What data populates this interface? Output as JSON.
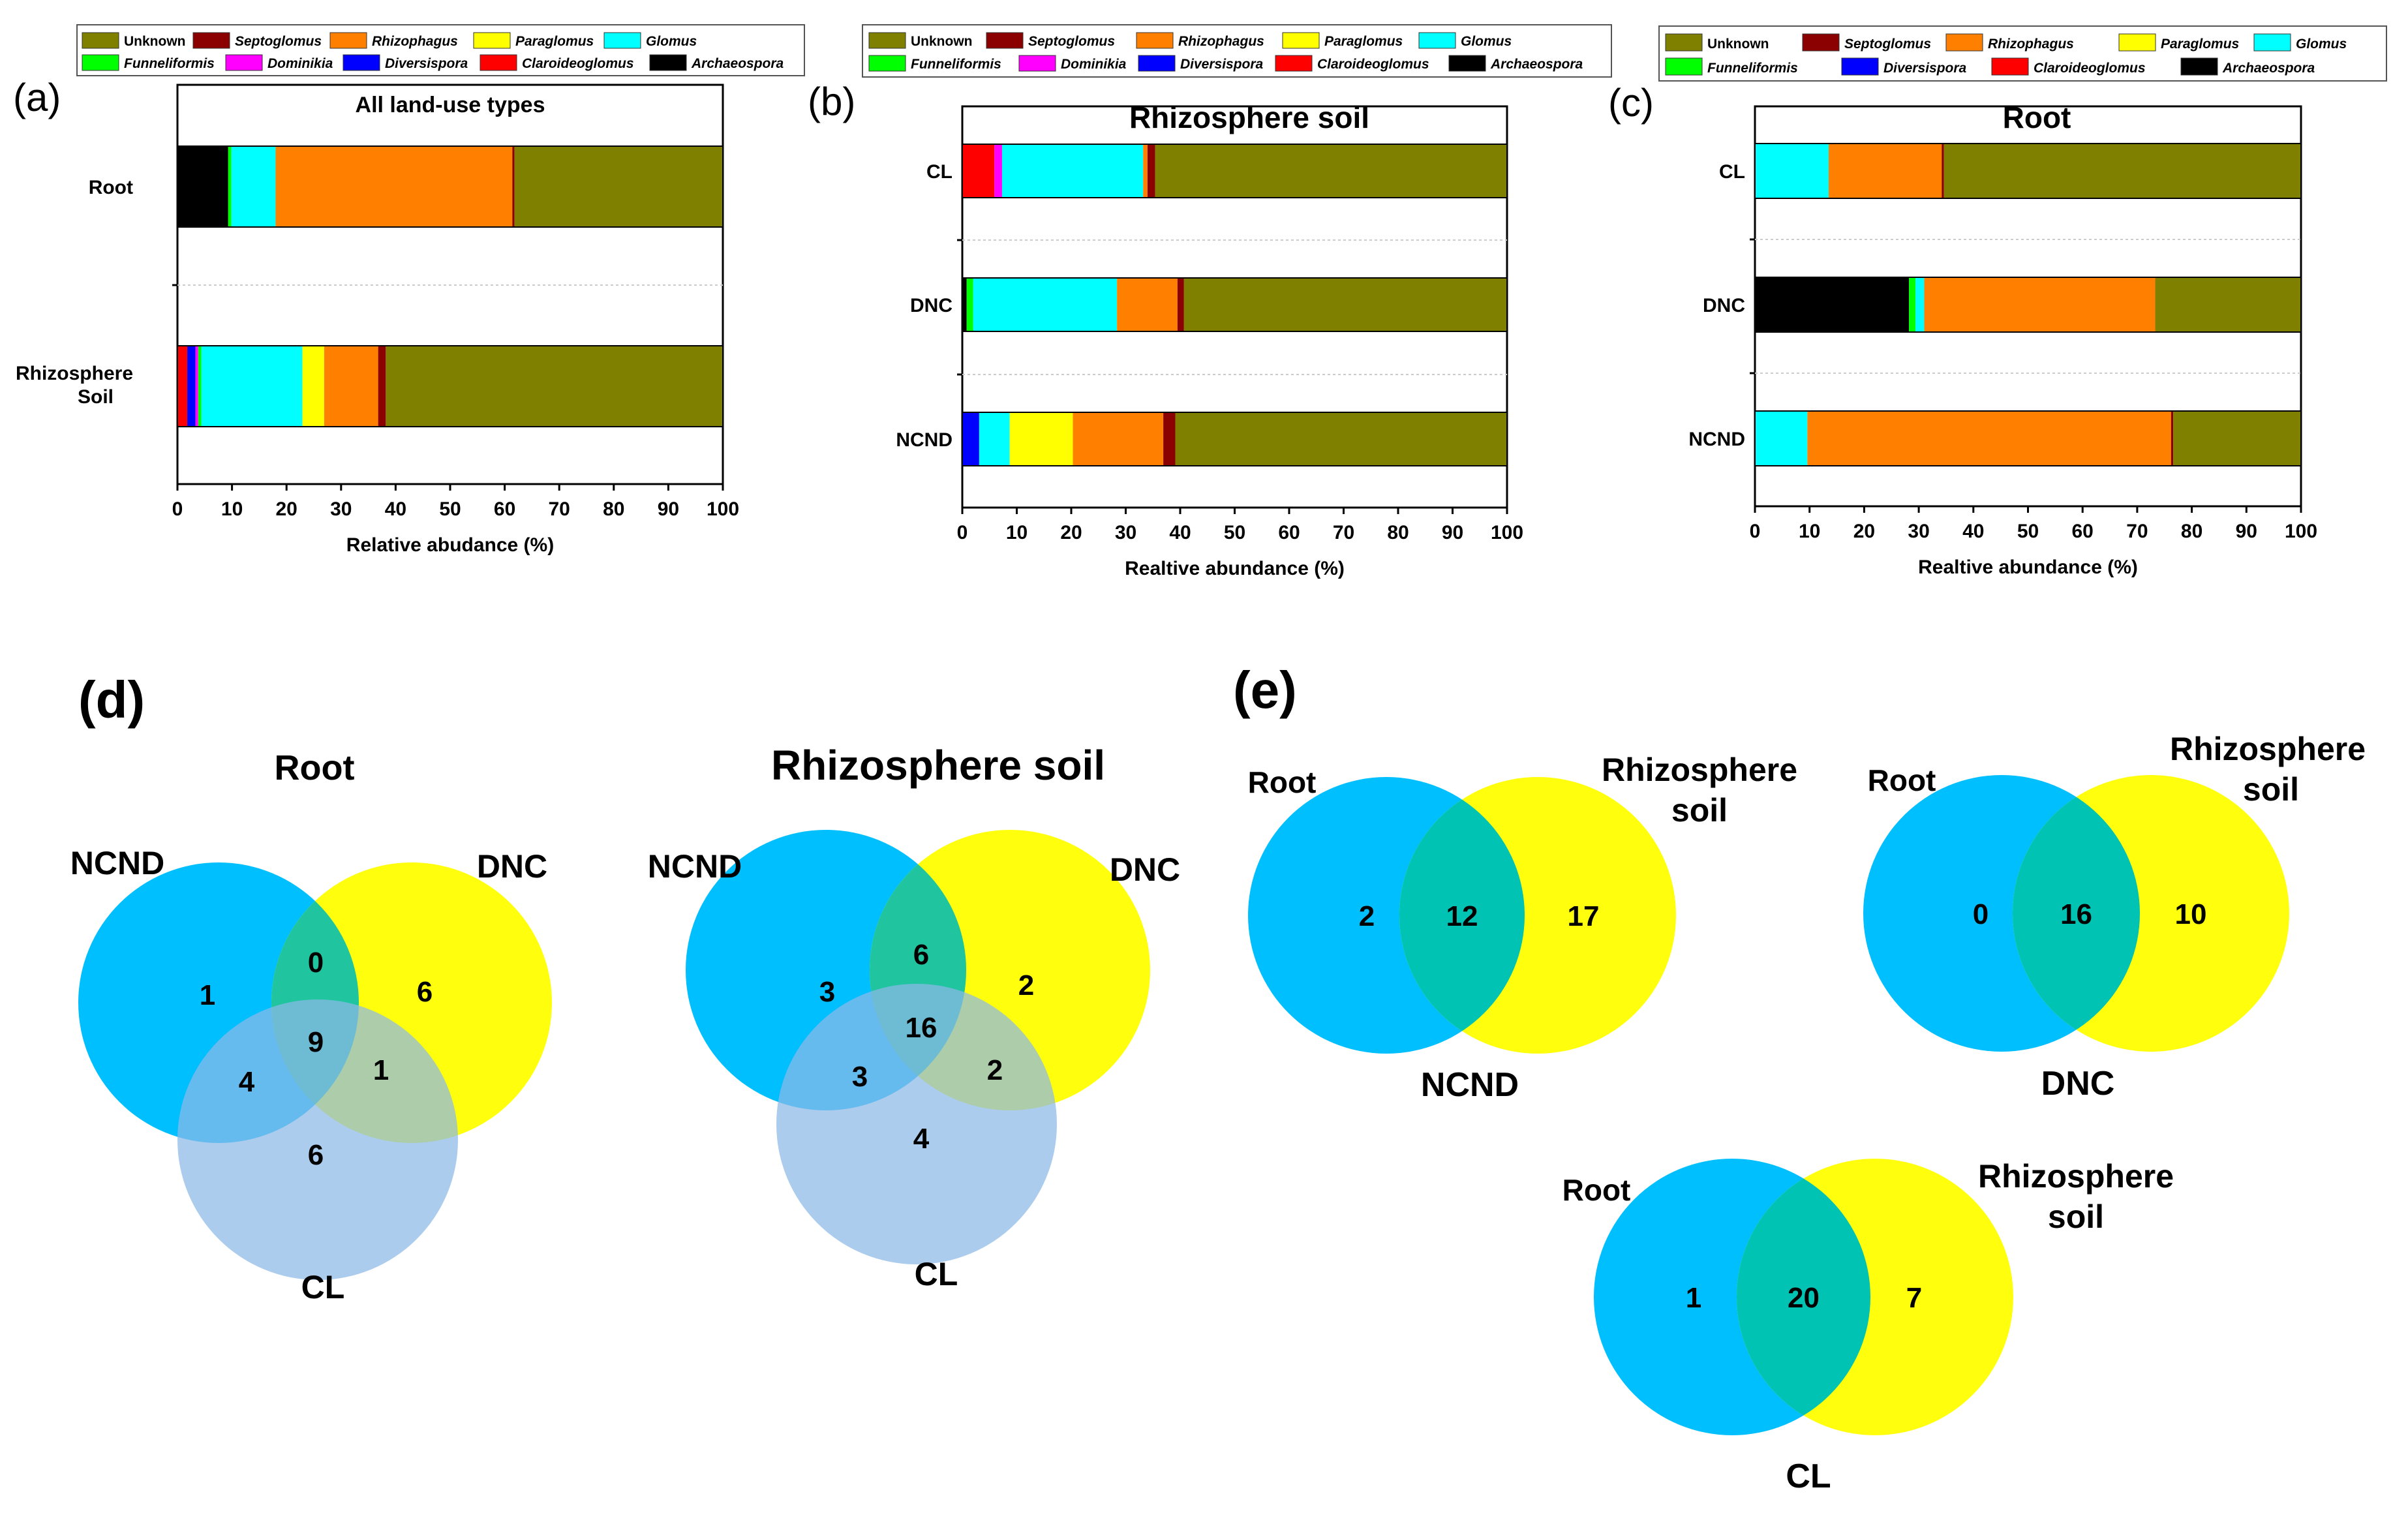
{
  "colors": {
    "Unknown": "#808000",
    "Septoglomus": "#8B0000",
    "Rhizophagus": "#FF8000",
    "Paraglomus": "#FFFF00",
    "Glomus": "#00FFFF",
    "Funneliformis": "#00FF00",
    "Dominikia": "#FF00FF",
    "Diversispora": "#0000FF",
    "Claroideoglomus": "#FF0000",
    "Archaeospora": "#000000",
    "venn_blue": "#00BFFF",
    "venn_yellow": "#FFFF00",
    "venn_lightblue": "#8CB8E8"
  },
  "chart_data": [
    {
      "type": "bar",
      "orientation": "horizontal-stacked",
      "panel_label": "(a)",
      "title": "All land-use types",
      "categories": [
        "Root",
        "Rhizosphere Soil"
      ],
      "xlabel": "Relative abudance (%)",
      "xlim": [
        0,
        100
      ],
      "xticks": [
        "0",
        "10",
        "20",
        "30",
        "40",
        "50",
        "60",
        "70",
        "80",
        "90",
        "100"
      ],
      "legend": [
        "Unknown",
        "Septoglomus",
        "Rhizophagus",
        "Paraglomus",
        "Glomus",
        "Funneliformis",
        "Dominikia",
        "Diversispora",
        "Claroideoglomus",
        "Archaeospora"
      ],
      "series": [
        {
          "name": "Archaeospora",
          "values": [
            9.3,
            0
          ]
        },
        {
          "name": "Claroideoglomus",
          "values": [
            0,
            1.8
          ]
        },
        {
          "name": "Diversispora",
          "values": [
            0,
            1.5
          ]
        },
        {
          "name": "Dominikia",
          "values": [
            0,
            0.5
          ]
        },
        {
          "name": "Funneliformis",
          "values": [
            0.6,
            0.6
          ]
        },
        {
          "name": "Glomus",
          "values": [
            8.1,
            18.5
          ]
        },
        {
          "name": "Paraglomus",
          "values": [
            0,
            4
          ]
        },
        {
          "name": "Rhizophagus",
          "values": [
            43.4,
            9.9
          ]
        },
        {
          "name": "Septoglomus",
          "values": [
            0.4,
            1.4
          ]
        },
        {
          "name": "Unknown",
          "values": [
            38.2,
            61.8
          ]
        }
      ]
    },
    {
      "type": "bar",
      "orientation": "horizontal-stacked",
      "panel_label": "(b)",
      "title": "Rhizosphere soil",
      "categories": [
        "CL",
        "DNC",
        "NCND"
      ],
      "xlabel": "Realtive abundance (%)",
      "xlim": [
        0,
        100
      ],
      "xticks": [
        "0",
        "10",
        "20",
        "30",
        "40",
        "50",
        "60",
        "70",
        "80",
        "90",
        "100"
      ],
      "legend": [
        "Unknown",
        "Septoglomus",
        "Rhizophagus",
        "Paraglomus",
        "Glomus",
        "Funneliformis",
        "Dominikia",
        "Diversispora",
        "Claroideoglomus",
        "Archaeospora"
      ],
      "series": [
        {
          "name": "Archaeospora",
          "values": [
            0,
            0.8,
            0
          ]
        },
        {
          "name": "Claroideoglomus",
          "values": [
            5.9,
            0,
            0
          ]
        },
        {
          "name": "Diversispora",
          "values": [
            0,
            0,
            3.1
          ]
        },
        {
          "name": "Dominikia",
          "values": [
            1.4,
            0,
            0
          ]
        },
        {
          "name": "Funneliformis",
          "values": [
            0,
            1.2,
            0
          ]
        },
        {
          "name": "Glomus",
          "values": [
            25.9,
            26.4,
            5.6
          ]
        },
        {
          "name": "Paraglomus",
          "values": [
            0,
            0,
            11.6
          ]
        },
        {
          "name": "Rhizophagus",
          "values": [
            0.8,
            11.1,
            16.6
          ]
        },
        {
          "name": "Septoglomus",
          "values": [
            1.4,
            1.2,
            2.2
          ]
        },
        {
          "name": "Unknown",
          "values": [
            64.6,
            59.3,
            60.9
          ]
        }
      ]
    },
    {
      "type": "bar",
      "orientation": "horizontal-stacked",
      "panel_label": "(c)",
      "title": "Root",
      "categories": [
        "CL",
        "DNC",
        "NCND"
      ],
      "xlabel": "Realtive abundance (%)",
      "xlim": [
        0,
        100
      ],
      "xticks": [
        "0",
        "10",
        "20",
        "30",
        "40",
        "50",
        "60",
        "70",
        "80",
        "90",
        "100"
      ],
      "legend": [
        "Unknown",
        "Septoglomus",
        "Rhizophagus",
        "Paraglomus",
        "Glomus",
        "Funneliformis",
        "Diversispora",
        "Claroideoglomus",
        "Archaeospora"
      ],
      "series": [
        {
          "name": "Archaeospora",
          "values": [
            0,
            28.2,
            0
          ]
        },
        {
          "name": "Funneliformis",
          "values": [
            0,
            1.2,
            0
          ]
        },
        {
          "name": "Glomus",
          "values": [
            13.5,
            1.6,
            9.6
          ]
        },
        {
          "name": "Rhizophagus",
          "values": [
            20.7,
            42.3,
            66.6
          ]
        },
        {
          "name": "Septoglomus",
          "values": [
            0.4,
            0,
            0.4
          ]
        },
        {
          "name": "Unknown",
          "values": [
            65.4,
            26.7,
            23.4
          ]
        }
      ]
    },
    {
      "type": "venn",
      "panel_label": "(d)",
      "title": "Root",
      "sets": [
        "NCND",
        "DNC",
        "CL"
      ],
      "regions": {
        "NCND_only": 1,
        "NCND_DNC": 0,
        "DNC_only": 6,
        "NCND_CL": 4,
        "all": 9,
        "DNC_CL": 1,
        "CL_only": 6
      }
    },
    {
      "type": "venn",
      "panel_label": "",
      "title": "Rhizosphere soil",
      "sets": [
        "NCND",
        "DNC",
        "CL"
      ],
      "regions": {
        "NCND_only": 3,
        "NCND_DNC": 6,
        "DNC_only": 2,
        "NCND_CL": 3,
        "all": 16,
        "DNC_CL": 2,
        "CL_only": 4
      }
    },
    {
      "type": "venn",
      "panel_label": "(e)",
      "title": "NCND",
      "sets": [
        "Root",
        "Rhizosphere soil"
      ],
      "set_labels": [
        "Root",
        "Rhizosphere",
        "soil"
      ],
      "regions": {
        "left": 2,
        "both": 12,
        "right": 17
      }
    },
    {
      "type": "venn",
      "panel_label": "",
      "title": "DNC",
      "sets": [
        "Root",
        "Rhizosphere soil"
      ],
      "set_labels": [
        "Root",
        "Rhizosphere",
        "soil"
      ],
      "regions": {
        "left": 0,
        "both": 16,
        "right": 10
      }
    },
    {
      "type": "venn",
      "panel_label": "",
      "title": "CL",
      "sets": [
        "Root",
        "Rhizosphere soil"
      ],
      "set_labels": [
        "Root",
        "Rhizosphere",
        "soil"
      ],
      "regions": {
        "left": 1,
        "both": 20,
        "right": 7
      }
    }
  ]
}
